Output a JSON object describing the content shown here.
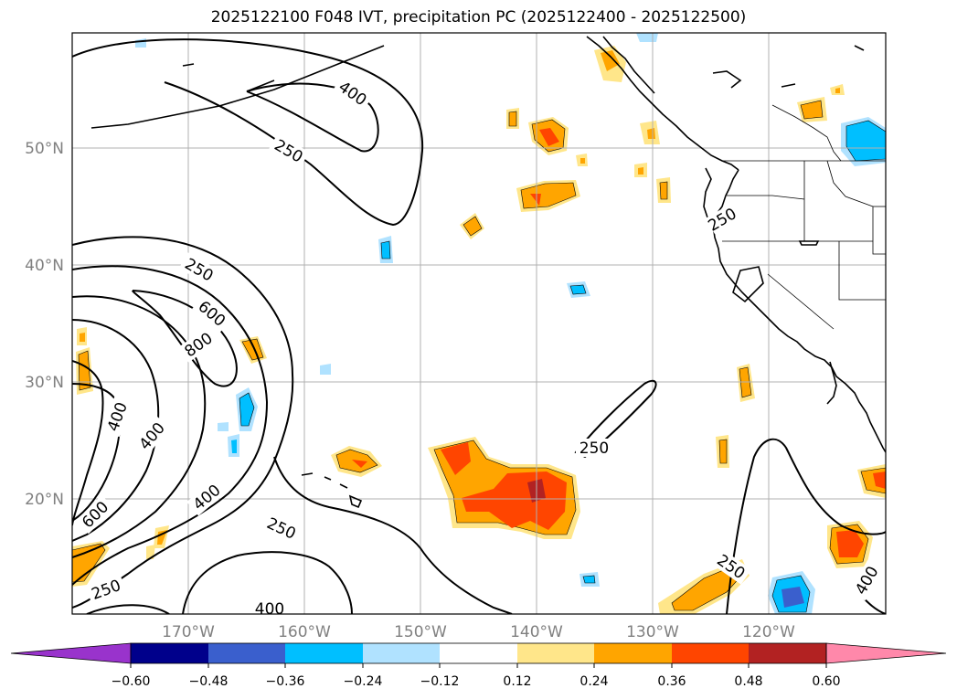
{
  "title": "2025122100 F048 IVT, precipitation PC (2025122400 - 2025122500)",
  "lat_labels": [
    "50°N",
    "40°N",
    "30°N",
    "20°N"
  ],
  "lon_labels": [
    "170°W",
    "160°W",
    "150°W",
    "140°W",
    "130°W",
    "120°W"
  ],
  "contour_labels": [
    "400",
    "250",
    "250",
    "600",
    "800",
    "400",
    "400",
    "400",
    "600",
    "250",
    "250",
    "250",
    "400",
    "250",
    "400",
    "250"
  ],
  "colorbar": {
    "ticks": [
      "−0.60",
      "−0.48",
      "−0.36",
      "−0.24",
      "−0.12",
      "0.12",
      "0.24",
      "0.36",
      "0.48",
      "0.60"
    ],
    "colors": [
      "#9933cc",
      "#00008b",
      "#3a5fcd",
      "#00bfff",
      "#b0e2ff",
      "#ffffff",
      "#ffe68a",
      "#ffa500",
      "#ff4500",
      "#b22222",
      "#ff88aa"
    ]
  },
  "colors": {
    "light_orange": "#ffe68a",
    "orange": "#ffa500",
    "red_orange": "#ff4500",
    "dark_red": "#b22222",
    "light_blue": "#b0e2ff",
    "blue": "#00bfff",
    "royal_blue": "#3a5fcd"
  }
}
